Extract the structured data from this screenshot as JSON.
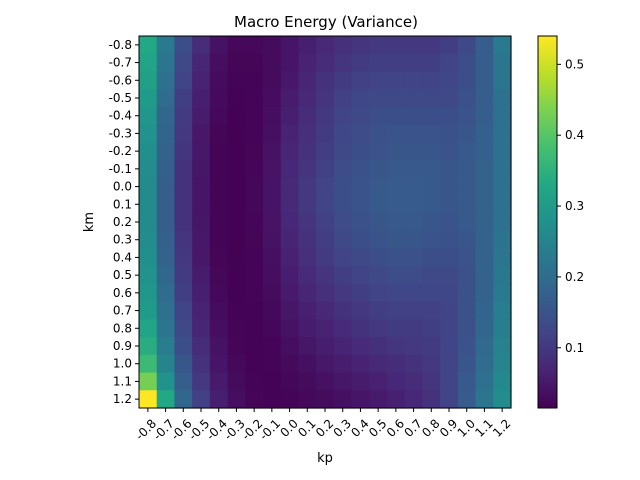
{
  "chart_data": {
    "type": "heatmap",
    "title": "Macro Energy (Variance)",
    "xlabel": "kp",
    "ylabel": "km",
    "x_categories": [
      "-0.8",
      "-0.7",
      "-0.6",
      "-0.5",
      "-0.4",
      "-0.3",
      "-0.2",
      "-0.1",
      "0.0",
      "0.1",
      "0.2",
      "0.3",
      "0.4",
      "0.5",
      "0.6",
      "0.7",
      "0.8",
      "0.9",
      "1.0",
      "1.1",
      "1.2"
    ],
    "y_categories": [
      "-0.8",
      "-0.7",
      "-0.6",
      "-0.5",
      "-0.4",
      "-0.3",
      "-0.2",
      "-0.1",
      "0.0",
      "0.1",
      "0.2",
      "0.3",
      "0.4",
      "0.5",
      "0.6",
      "0.7",
      "0.8",
      "0.9",
      "1.0",
      "1.1",
      "1.2"
    ],
    "colormap": "viridis",
    "color_range": [
      0.015,
      0.54
    ],
    "colorbar_ticks": [
      0.1,
      0.2,
      0.3,
      0.4,
      0.5
    ],
    "values": [
      [
        0.33,
        0.23,
        0.14,
        0.08,
        0.04,
        0.025,
        0.025,
        0.03,
        0.045,
        0.06,
        0.075,
        0.085,
        0.095,
        0.1,
        0.1,
        0.1,
        0.1,
        0.11,
        0.13,
        0.17,
        0.23
      ],
      [
        0.32,
        0.22,
        0.13,
        0.07,
        0.035,
        0.022,
        0.022,
        0.03,
        0.045,
        0.065,
        0.08,
        0.095,
        0.105,
        0.11,
        0.11,
        0.11,
        0.11,
        0.12,
        0.14,
        0.17,
        0.22
      ],
      [
        0.31,
        0.21,
        0.12,
        0.065,
        0.03,
        0.02,
        0.02,
        0.03,
        0.05,
        0.07,
        0.09,
        0.105,
        0.115,
        0.12,
        0.12,
        0.12,
        0.12,
        0.125,
        0.14,
        0.17,
        0.22
      ],
      [
        0.3,
        0.2,
        0.11,
        0.06,
        0.028,
        0.018,
        0.02,
        0.032,
        0.055,
        0.075,
        0.095,
        0.115,
        0.125,
        0.13,
        0.13,
        0.13,
        0.13,
        0.13,
        0.145,
        0.17,
        0.21
      ],
      [
        0.29,
        0.19,
        0.105,
        0.055,
        0.025,
        0.017,
        0.02,
        0.035,
        0.06,
        0.08,
        0.1,
        0.12,
        0.13,
        0.14,
        0.14,
        0.14,
        0.14,
        0.14,
        0.15,
        0.17,
        0.21
      ],
      [
        0.28,
        0.185,
        0.1,
        0.05,
        0.022,
        0.016,
        0.021,
        0.037,
        0.065,
        0.085,
        0.105,
        0.125,
        0.135,
        0.145,
        0.15,
        0.15,
        0.15,
        0.145,
        0.155,
        0.175,
        0.21
      ],
      [
        0.275,
        0.18,
        0.095,
        0.048,
        0.021,
        0.016,
        0.022,
        0.04,
        0.07,
        0.09,
        0.11,
        0.13,
        0.14,
        0.15,
        0.155,
        0.155,
        0.155,
        0.15,
        0.16,
        0.175,
        0.21
      ],
      [
        0.27,
        0.175,
        0.09,
        0.046,
        0.02,
        0.016,
        0.023,
        0.042,
        0.072,
        0.095,
        0.115,
        0.135,
        0.145,
        0.155,
        0.16,
        0.16,
        0.16,
        0.155,
        0.16,
        0.18,
        0.21
      ],
      [
        0.265,
        0.17,
        0.09,
        0.045,
        0.02,
        0.016,
        0.024,
        0.044,
        0.075,
        0.1,
        0.12,
        0.14,
        0.15,
        0.16,
        0.165,
        0.165,
        0.16,
        0.155,
        0.16,
        0.18,
        0.21
      ],
      [
        0.265,
        0.17,
        0.09,
        0.045,
        0.02,
        0.016,
        0.024,
        0.044,
        0.075,
        0.1,
        0.12,
        0.14,
        0.15,
        0.16,
        0.165,
        0.165,
        0.16,
        0.155,
        0.16,
        0.18,
        0.21
      ],
      [
        0.265,
        0.17,
        0.09,
        0.046,
        0.02,
        0.016,
        0.023,
        0.042,
        0.072,
        0.095,
        0.115,
        0.135,
        0.145,
        0.155,
        0.16,
        0.16,
        0.155,
        0.15,
        0.16,
        0.18,
        0.21
      ],
      [
        0.27,
        0.175,
        0.095,
        0.048,
        0.021,
        0.016,
        0.022,
        0.04,
        0.068,
        0.09,
        0.11,
        0.13,
        0.14,
        0.15,
        0.155,
        0.155,
        0.15,
        0.145,
        0.155,
        0.18,
        0.215
      ],
      [
        0.275,
        0.18,
        0.1,
        0.05,
        0.022,
        0.016,
        0.021,
        0.037,
        0.063,
        0.085,
        0.105,
        0.12,
        0.13,
        0.14,
        0.145,
        0.145,
        0.14,
        0.14,
        0.15,
        0.18,
        0.22
      ],
      [
        0.28,
        0.19,
        0.105,
        0.055,
        0.024,
        0.016,
        0.02,
        0.034,
        0.058,
        0.078,
        0.095,
        0.11,
        0.12,
        0.13,
        0.135,
        0.135,
        0.13,
        0.13,
        0.145,
        0.18,
        0.225
      ],
      [
        0.29,
        0.2,
        0.11,
        0.06,
        0.027,
        0.017,
        0.019,
        0.03,
        0.052,
        0.07,
        0.085,
        0.1,
        0.11,
        0.12,
        0.125,
        0.125,
        0.125,
        0.125,
        0.145,
        0.18,
        0.23
      ],
      [
        0.3,
        0.21,
        0.12,
        0.065,
        0.03,
        0.018,
        0.018,
        0.027,
        0.046,
        0.062,
        0.075,
        0.09,
        0.1,
        0.11,
        0.115,
        0.115,
        0.115,
        0.12,
        0.145,
        0.185,
        0.235
      ],
      [
        0.32,
        0.22,
        0.13,
        0.07,
        0.034,
        0.02,
        0.018,
        0.024,
        0.04,
        0.054,
        0.066,
        0.078,
        0.09,
        0.1,
        0.105,
        0.105,
        0.11,
        0.12,
        0.145,
        0.19,
        0.24
      ],
      [
        0.34,
        0.235,
        0.14,
        0.08,
        0.04,
        0.023,
        0.018,
        0.021,
        0.034,
        0.046,
        0.057,
        0.067,
        0.078,
        0.088,
        0.095,
        0.1,
        0.105,
        0.12,
        0.15,
        0.195,
        0.245
      ],
      [
        0.37,
        0.25,
        0.155,
        0.09,
        0.045,
        0.026,
        0.018,
        0.019,
        0.028,
        0.038,
        0.048,
        0.057,
        0.066,
        0.075,
        0.083,
        0.09,
        0.1,
        0.12,
        0.155,
        0.2,
        0.25
      ],
      [
        0.43,
        0.28,
        0.17,
        0.1,
        0.052,
        0.03,
        0.02,
        0.018,
        0.024,
        0.031,
        0.039,
        0.047,
        0.055,
        0.063,
        0.072,
        0.08,
        0.095,
        0.12,
        0.16,
        0.21,
        0.26
      ],
      [
        0.54,
        0.33,
        0.19,
        0.115,
        0.06,
        0.035,
        0.022,
        0.018,
        0.02,
        0.025,
        0.031,
        0.038,
        0.045,
        0.053,
        0.062,
        0.072,
        0.09,
        0.12,
        0.165,
        0.22,
        0.27
      ]
    ]
  }
}
